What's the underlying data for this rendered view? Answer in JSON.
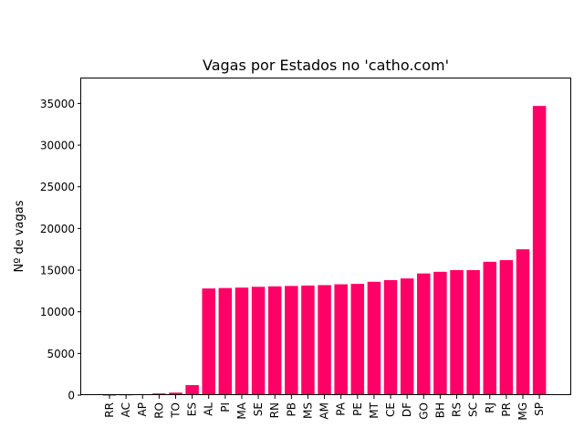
{
  "chart_data": {
    "type": "bar",
    "title": "Vagas por Estados no 'catho.com'",
    "xlabel": "",
    "ylabel": "Nº de vagas",
    "ylim": [
      0,
      38000
    ],
    "yticks": [
      0,
      5000,
      10000,
      15000,
      20000,
      25000,
      30000,
      35000
    ],
    "ytick_labels": [
      "0",
      "5000",
      "10000",
      "15000",
      "20000",
      "25000",
      "30000",
      "35000"
    ],
    "grid": false,
    "bar_color": "#ff0066",
    "categories": [
      "RR",
      "AC",
      "AP",
      "RO",
      "TO",
      "ES",
      "AL",
      "PI",
      "MA",
      "SE",
      "RN",
      "PB",
      "MS",
      "AM",
      "PA",
      "PE",
      "MT",
      "CE",
      "DF",
      "GO",
      "BH",
      "RS",
      "SC",
      "RJ",
      "PR",
      "MG",
      "SP"
    ],
    "values": [
      30,
      60,
      90,
      200,
      300,
      1200,
      12800,
      12850,
      12900,
      13000,
      13050,
      13100,
      13150,
      13200,
      13300,
      13350,
      13600,
      13800,
      14000,
      14600,
      14800,
      15000,
      15000,
      16000,
      16200,
      17500,
      34700
    ]
  }
}
